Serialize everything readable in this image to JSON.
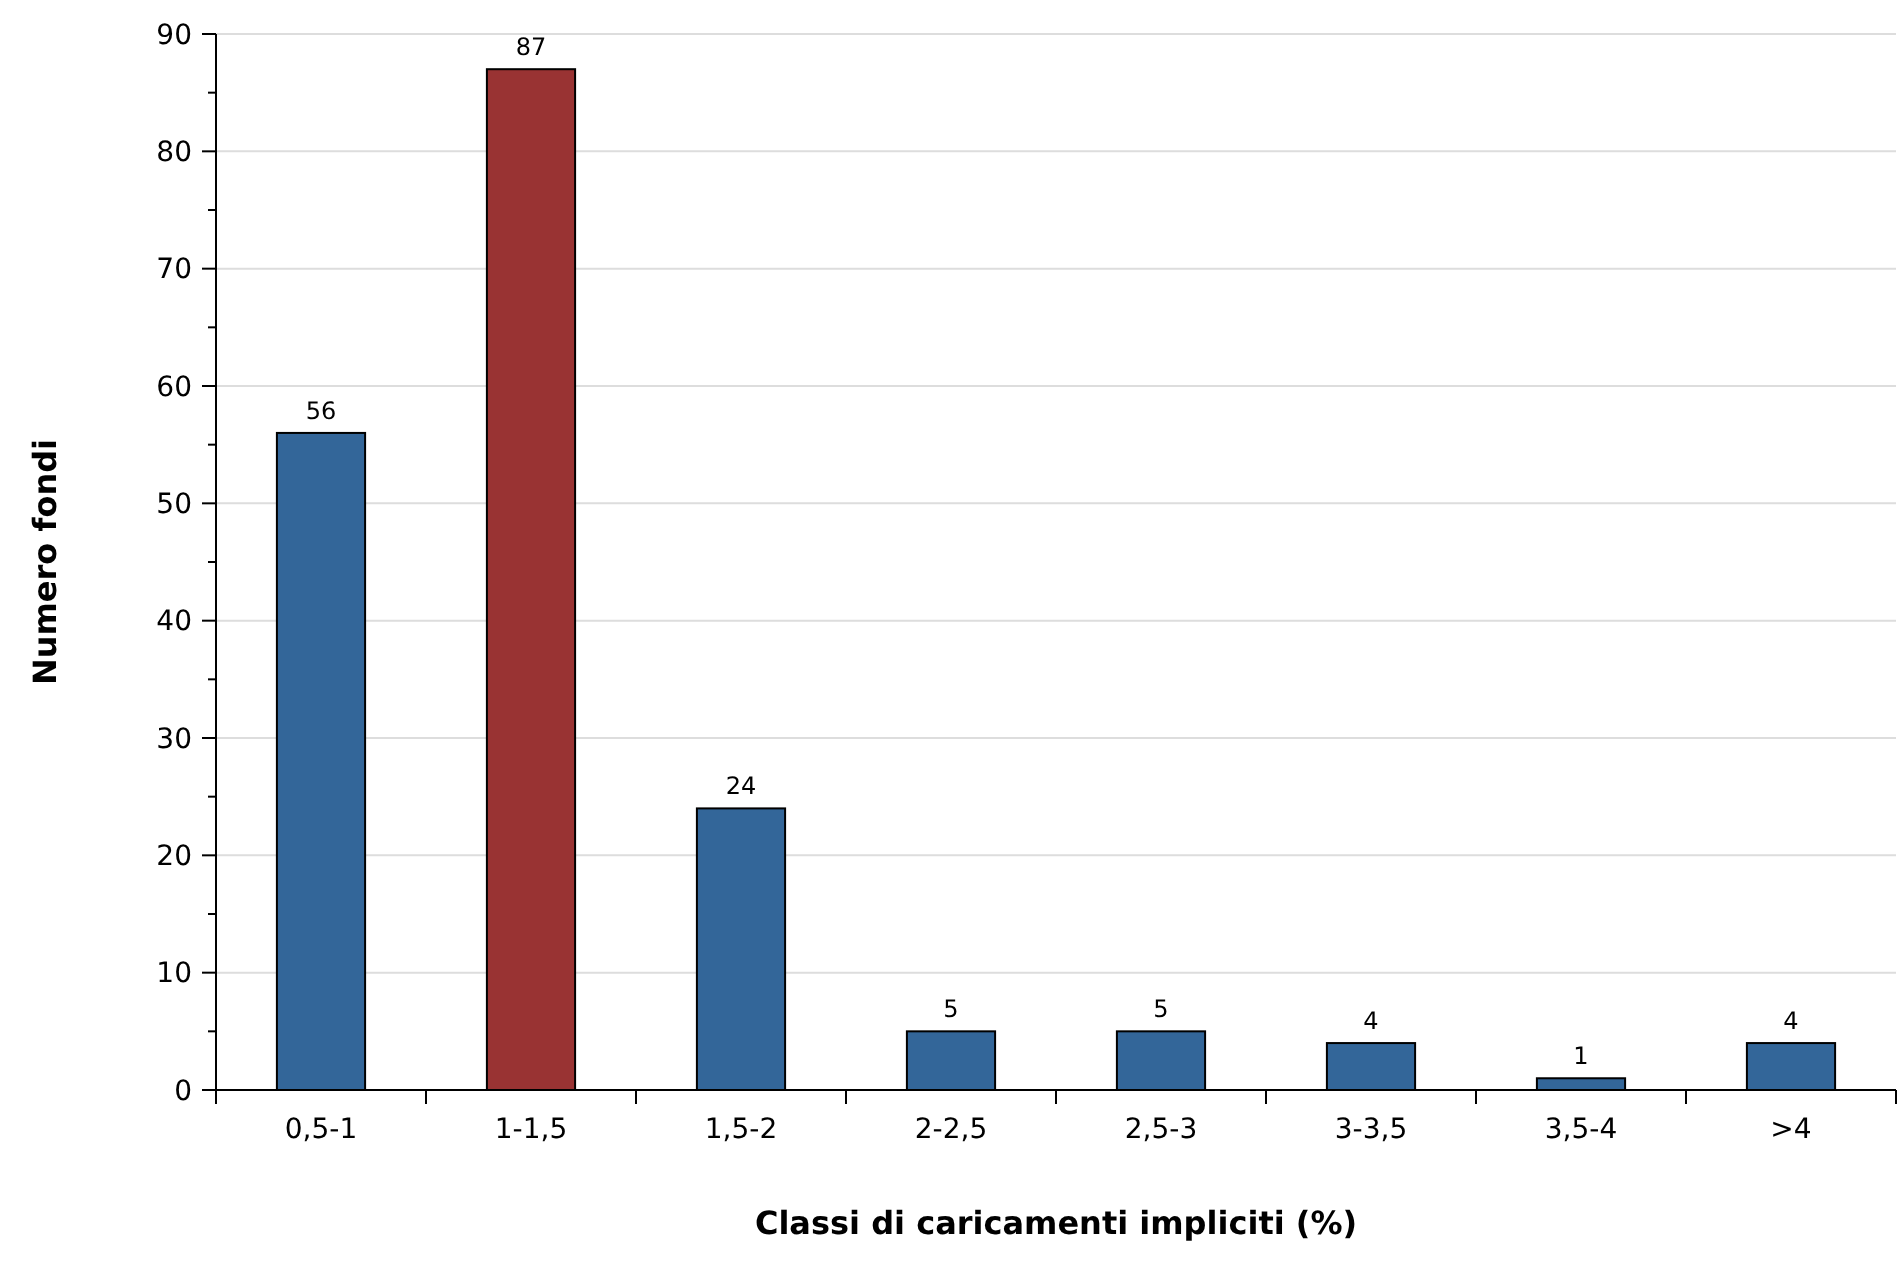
{
  "chart_data": {
    "type": "bar",
    "xlabel": "Classi di caricamenti impliciti (%)",
    "ylabel": "Numero fondi",
    "categories": [
      "0,5-1",
      "1-1,5",
      "1,5-2",
      "2-2,5",
      "2,5-3",
      "3-3,5",
      "3,5-4",
      ">4"
    ],
    "values": [
      56,
      87,
      24,
      5,
      5,
      4,
      1,
      4
    ],
    "colors": [
      "#336699",
      "#993333",
      "#336699",
      "#336699",
      "#336699",
      "#336699",
      "#336699",
      "#336699"
    ],
    "ylim": [
      0,
      90
    ],
    "yticks": [
      0,
      {
        "value": 5,
        "label": null
      },
      10,
      {
        "value": 15,
        "label": null
      },
      20,
      {
        "value": 25,
        "label": null
      },
      30,
      {
        "value": 35,
        "label": null
      },
      40,
      {
        "value": 45,
        "label": null
      },
      50,
      {
        "value": 55,
        "label": null
      },
      60,
      {
        "value": 65,
        "label": null
      },
      70,
      {
        "value": 75,
        "label": null
      },
      80,
      {
        "value": 85,
        "label": null
      },
      90
    ],
    "grid": "y",
    "data_labels": true
  }
}
